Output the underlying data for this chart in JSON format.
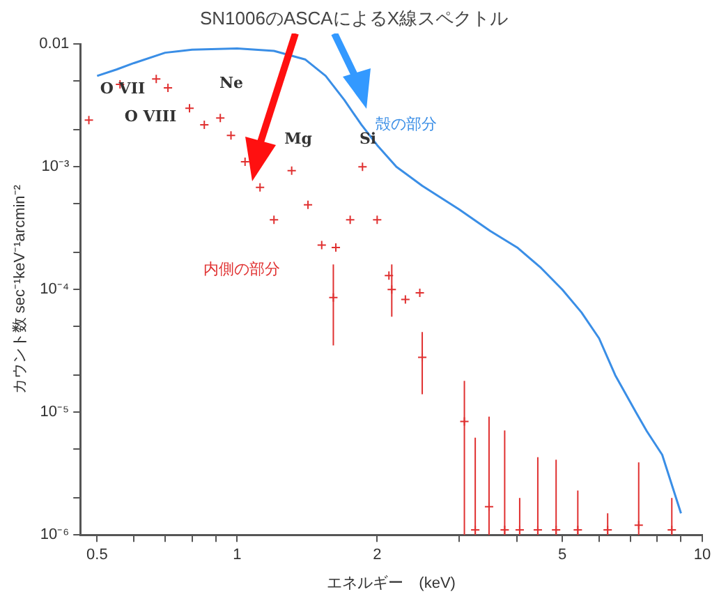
{
  "chart_data": {
    "type": "line",
    "title": "SN1006のASCAによるX線スペクトル",
    "xlabel": "エネルギー　(keV)",
    "ylabel": "カウント数 sec⁻¹keV⁻¹arcmin⁻²",
    "log": "xy",
    "xlim": [
      0.46,
      10
    ],
    "ylim": [
      1e-06,
      0.01
    ],
    "xticks": [
      0.5,
      {
        "value": 0.6,
        "label": null
      },
      {
        "value": 0.7,
        "label": null
      },
      {
        "value": 0.8,
        "label": null
      },
      {
        "value": 0.9,
        "label": null
      },
      1,
      2,
      {
        "value": 3,
        "label": null
      },
      {
        "value": 4,
        "label": null
      },
      5,
      {
        "value": 6,
        "label": null
      },
      {
        "value": 7,
        "label": null
      },
      {
        "value": 8,
        "label": null
      },
      {
        "value": 9,
        "label": null
      },
      10
    ],
    "yticks": [
      {
        "value": 1e-06,
        "label": "10⁻⁶"
      },
      {
        "value": 2e-06,
        "label": null
      },
      {
        "value": 5e-06,
        "label": null
      },
      {
        "value": 1e-05,
        "label": "10⁻⁵"
      },
      {
        "value": 2e-05,
        "label": null
      },
      {
        "value": 5e-05,
        "label": null
      },
      {
        "value": 0.0001,
        "label": "10⁻⁴"
      },
      {
        "value": 0.0002,
        "label": null
      },
      {
        "value": 0.0005,
        "label": null
      },
      {
        "value": 0.001,
        "label": "10⁻³"
      },
      {
        "value": 0.002,
        "label": null
      },
      {
        "value": 0.005,
        "label": null
      },
      0.01
    ],
    "grid": false,
    "legend": false,
    "series": [
      {
        "name": "殻の部分",
        "marker": "none",
        "color": "#3a8ee6",
        "x": [
          0.5,
          0.55,
          0.6,
          0.7,
          0.8,
          1.0,
          1.2,
          1.4,
          1.55,
          1.7,
          1.85,
          2.0,
          2.2,
          2.5,
          3.0,
          3.5,
          4.0,
          4.5,
          5.0,
          5.5,
          6.0,
          6.5,
          7.2,
          7.6,
          8.2,
          9.0
        ],
        "values": [
          0.0055,
          0.0062,
          0.007,
          0.0085,
          0.009,
          0.0092,
          0.0088,
          0.0075,
          0.0055,
          0.0035,
          0.0022,
          0.0015,
          0.001,
          0.0007,
          0.00045,
          0.0003,
          0.00022,
          0.00015,
          0.0001,
          6.5e-05,
          4e-05,
          2e-05,
          1e-05,
          7e-06,
          4.5e-06,
          1.5e-06
        ]
      },
      {
        "name": "内側の部分",
        "type": "scatter",
        "marker": "cross",
        "color": "#e03030",
        "x": [
          0.48,
          0.56,
          0.67,
          0.71,
          0.79,
          0.85,
          0.92,
          0.97,
          1.04,
          1.12,
          1.2,
          1.31,
          1.42,
          1.52,
          1.61,
          1.63,
          1.75,
          1.86,
          2.0,
          2.12,
          2.15,
          2.3,
          2.47,
          2.5,
          3.08,
          3.25,
          3.48,
          3.76,
          4.05,
          4.43,
          4.85,
          5.4,
          6.26,
          7.3,
          8.6
        ],
        "values": [
          0.0024,
          0.0047,
          0.0052,
          0.0044,
          0.003,
          0.0022,
          0.0025,
          0.0018,
          0.0011,
          0.00068,
          0.00037,
          0.00093,
          0.00049,
          0.00023,
          8.6e-05,
          0.00022,
          0.00037,
          0.001,
          0.00037,
          0.00013,
          0.0001,
          8.3e-05,
          9.4e-05,
          2.8e-05,
          8.4e-06,
          1.1e-06,
          1.7e-06,
          1.1e-06,
          1.1e-06,
          1.1e-06,
          1.1e-06,
          1.1e-06,
          1.1e-06,
          1.2e-06,
          1.1e-06
        ],
        "errors": [
          null,
          null,
          null,
          null,
          null,
          null,
          null,
          null,
          null,
          null,
          null,
          null,
          null,
          null,
          [
            3.5e-05,
            0.00016
          ],
          null,
          null,
          null,
          null,
          null,
          [
            6e-05,
            0.00016
          ],
          null,
          null,
          [
            1.4e-05,
            4.5e-05
          ],
          [
            1e-06,
            1.8e-05
          ],
          [
            1e-06,
            6.2e-06
          ],
          [
            1e-06,
            9.2e-06
          ],
          [
            1e-06,
            7.1e-06
          ],
          [
            1e-06,
            2e-06
          ],
          [
            1e-06,
            4.3e-06
          ],
          [
            1e-06,
            4.1e-06
          ],
          [
            1e-06,
            2.3e-06
          ],
          [
            1e-06,
            1.5e-06
          ],
          [
            1e-06,
            3.9e-06
          ],
          [
            1e-06,
            2e-06
          ]
        ]
      }
    ],
    "annotations": [
      "O VII",
      "O VIII",
      "Ne",
      "Mg",
      "Si"
    ]
  }
}
